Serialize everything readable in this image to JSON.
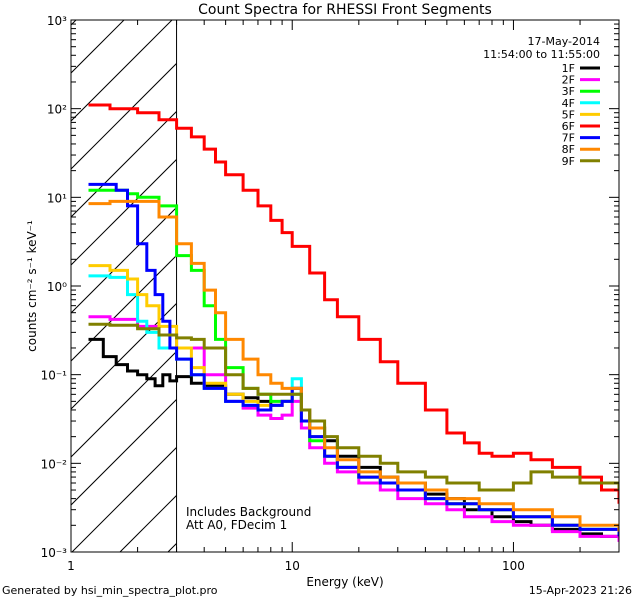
{
  "chart_data": {
    "type": "line",
    "title": "Count Spectra for RHESSI Front Segments",
    "xlabel": "Energy (keV)",
    "ylabel": "counts cm⁻² s⁻¹ keV⁻¹",
    "xscale": "log",
    "yscale": "log",
    "xlim": [
      1,
      300
    ],
    "ylim": [
      0.001,
      1000
    ],
    "x_ticks": [
      {
        "value": 1,
        "label": "1"
      },
      {
        "value": 10,
        "label": "10"
      },
      {
        "value": 100,
        "label": "100"
      }
    ],
    "y_ticks": [
      {
        "value": 1000,
        "label": "10³"
      },
      {
        "value": 100,
        "label": "10²"
      },
      {
        "value": 10,
        "label": "10¹"
      },
      {
        "value": 1,
        "label": "10⁰"
      },
      {
        "value": 0.1,
        "label": "10⁻¹"
      },
      {
        "value": 0.01,
        "label": "10⁻²"
      },
      {
        "value": 0.001,
        "label": "10⁻³"
      }
    ],
    "excluded_region": {
      "x_from": 1,
      "x_to": 3,
      "style": "hatched"
    },
    "legend_position": "top-right",
    "header_lines": [
      "17-May-2014",
      "11:54:00 to 11:55:00"
    ],
    "annotations": [
      "Includes Background",
      "Att A0, FDecim 1"
    ],
    "series": [
      {
        "name": "1F",
        "color": "#000000",
        "x": [
          1.2,
          1.4,
          1.6,
          1.8,
          2.0,
          2.2,
          2.4,
          2.6,
          2.8,
          3.0,
          3.5,
          4,
          5,
          6,
          7,
          8,
          9,
          10,
          11,
          12,
          14,
          16,
          20,
          25,
          30,
          40,
          50,
          60,
          70,
          80,
          100,
          120,
          150,
          200,
          250,
          300
        ],
        "y": [
          0.25,
          0.16,
          0.13,
          0.11,
          0.1,
          0.09,
          0.075,
          0.1,
          0.085,
          0.095,
          0.08,
          0.075,
          0.06,
          0.055,
          0.05,
          0.045,
          0.05,
          0.07,
          0.04,
          0.025,
          0.018,
          0.012,
          0.009,
          0.007,
          0.006,
          0.0045,
          0.004,
          0.003,
          0.003,
          0.0025,
          0.0022,
          0.002,
          0.0018,
          0.0016,
          0.0015,
          0.0014
        ]
      },
      {
        "name": "2F",
        "color": "#ff00ff",
        "x": [
          1.2,
          1.5,
          2.0,
          2.5,
          3.0,
          4,
          5,
          6,
          7,
          8,
          9,
          10,
          11,
          12,
          14,
          16,
          20,
          25,
          30,
          40,
          50,
          60,
          80,
          100,
          150,
          200,
          300
        ],
        "y": [
          0.45,
          0.42,
          0.35,
          0.28,
          0.2,
          0.1,
          0.05,
          0.042,
          0.035,
          0.032,
          0.035,
          0.05,
          0.025,
          0.015,
          0.01,
          0.008,
          0.006,
          0.005,
          0.004,
          0.0035,
          0.003,
          0.0025,
          0.0022,
          0.002,
          0.0017,
          0.0015,
          0.0013
        ]
      },
      {
        "name": "3F",
        "color": "#00ff00",
        "x": [
          1.2,
          1.5,
          1.8,
          2.0,
          2.5,
          3.0,
          3.5,
          4.0,
          4.5,
          5.0,
          6,
          7,
          8,
          9,
          10,
          11,
          12,
          14,
          16,
          20,
          25,
          30,
          40,
          50,
          70,
          100,
          150,
          200,
          300
        ],
        "y": [
          12,
          12,
          11,
          10,
          8,
          2.2,
          1.5,
          0.6,
          0.25,
          0.12,
          0.07,
          0.06,
          0.05,
          0.05,
          0.06,
          0.03,
          0.018,
          0.012,
          0.009,
          0.007,
          0.006,
          0.005,
          0.004,
          0.0035,
          0.003,
          0.0025,
          0.002,
          0.0018,
          0.0015
        ]
      },
      {
        "name": "4F",
        "color": "#00ffff",
        "x": [
          1.2,
          1.5,
          1.8,
          2.0,
          2.2,
          2.5,
          3.0,
          3.5,
          4,
          5,
          6,
          7,
          8,
          9,
          10,
          11,
          12,
          14,
          16,
          20,
          25,
          30,
          40,
          50,
          70,
          100,
          150,
          200,
          300
        ],
        "y": [
          1.3,
          1.25,
          0.8,
          0.4,
          0.3,
          0.2,
          0.15,
          0.1,
          0.07,
          0.05,
          0.045,
          0.04,
          0.045,
          0.05,
          0.09,
          0.03,
          0.02,
          0.012,
          0.009,
          0.007,
          0.006,
          0.005,
          0.004,
          0.0035,
          0.003,
          0.0025,
          0.002,
          0.0018,
          0.0015
        ]
      },
      {
        "name": "5F",
        "color": "#ffcc00",
        "x": [
          1.2,
          1.5,
          1.8,
          2.0,
          2.2,
          2.5,
          3.0,
          3.5,
          4,
          5,
          6,
          7,
          8,
          9,
          10,
          11,
          12,
          14,
          16,
          20,
          25,
          30,
          40,
          50,
          70,
          100,
          150,
          200,
          300
        ],
        "y": [
          1.7,
          1.5,
          1.2,
          0.8,
          0.6,
          0.35,
          0.2,
          0.12,
          0.08,
          0.06,
          0.05,
          0.045,
          0.045,
          0.05,
          0.07,
          0.03,
          0.02,
          0.012,
          0.009,
          0.007,
          0.006,
          0.005,
          0.004,
          0.0035,
          0.003,
          0.0025,
          0.002,
          0.0018,
          0.0015
        ]
      },
      {
        "name": "6F",
        "color": "#ff0000",
        "x": [
          1.2,
          1.5,
          2.0,
          2.5,
          3.0,
          3.5,
          4,
          4.5,
          5,
          6,
          7,
          8,
          9,
          10,
          12,
          14,
          16,
          20,
          25,
          30,
          40,
          50,
          60,
          70,
          80,
          100,
          120,
          150,
          200,
          250,
          300
        ],
        "y": [
          110,
          100,
          90,
          75,
          60,
          48,
          35,
          25,
          18,
          12,
          8,
          5.5,
          4,
          2.8,
          1.4,
          0.7,
          0.45,
          0.25,
          0.14,
          0.08,
          0.04,
          0.022,
          0.017,
          0.013,
          0.012,
          0.013,
          0.011,
          0.009,
          0.007,
          0.005,
          0.0035
        ]
      },
      {
        "name": "7F",
        "color": "#0000ff",
        "x": [
          1.2,
          1.4,
          1.6,
          1.8,
          2.0,
          2.2,
          2.4,
          2.6,
          2.8,
          3.0,
          3.5,
          4,
          5,
          6,
          7,
          8,
          9,
          10,
          11,
          12,
          14,
          16,
          20,
          25,
          30,
          40,
          50,
          70,
          100,
          150,
          200,
          300
        ],
        "y": [
          14,
          14,
          12,
          8,
          3,
          1.5,
          0.8,
          0.4,
          0.2,
          0.15,
          0.1,
          0.07,
          0.05,
          0.045,
          0.04,
          0.045,
          0.05,
          0.07,
          0.03,
          0.02,
          0.012,
          0.009,
          0.007,
          0.006,
          0.005,
          0.004,
          0.0035,
          0.003,
          0.0025,
          0.002,
          0.0018,
          0.0015
        ]
      },
      {
        "name": "8F",
        "color": "#ff8800",
        "x": [
          1.2,
          1.5,
          2.0,
          2.5,
          3.0,
          3.5,
          4.0,
          4.5,
          5,
          6,
          7,
          8,
          9,
          10,
          11,
          12,
          14,
          16,
          20,
          25,
          30,
          40,
          50,
          70,
          100,
          150,
          200,
          300
        ],
        "y": [
          8.5,
          9,
          9,
          6,
          3,
          1.8,
          0.9,
          0.5,
          0.25,
          0.15,
          0.1,
          0.08,
          0.07,
          0.07,
          0.04,
          0.025,
          0.015,
          0.011,
          0.008,
          0.007,
          0.006,
          0.005,
          0.004,
          0.0035,
          0.003,
          0.0025,
          0.002,
          0.0017
        ]
      },
      {
        "name": "9F",
        "color": "#808000",
        "x": [
          1.2,
          1.5,
          2.0,
          2.5,
          3.0,
          3.5,
          4,
          5,
          6,
          7,
          8,
          9,
          10,
          11,
          12,
          14,
          16,
          20,
          25,
          30,
          40,
          50,
          70,
          100,
          120,
          150,
          200,
          300
        ],
        "y": [
          0.37,
          0.36,
          0.33,
          0.28,
          0.26,
          0.25,
          0.2,
          0.1,
          0.07,
          0.06,
          0.06,
          0.06,
          0.06,
          0.04,
          0.03,
          0.02,
          0.015,
          0.012,
          0.01,
          0.008,
          0.007,
          0.006,
          0.005,
          0.006,
          0.008,
          0.007,
          0.006,
          0.005
        ]
      }
    ]
  },
  "footer": {
    "generated_by": "Generated by hsi_min_spectra_plot.pro",
    "timestamp": "15-Apr-2023 21:26"
  }
}
